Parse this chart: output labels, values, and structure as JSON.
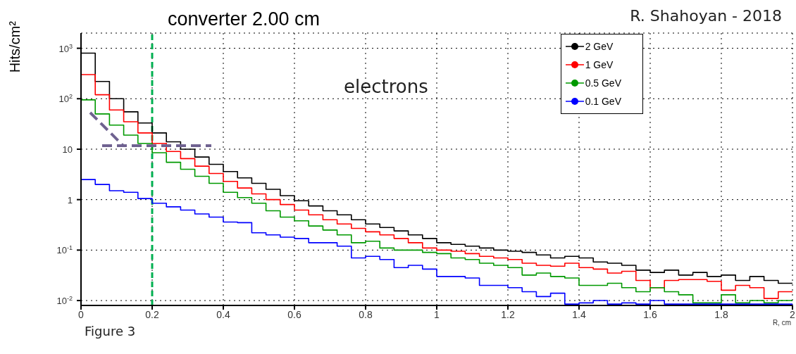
{
  "chart_data": {
    "type": "histogram",
    "title": "converter 2.00 cm",
    "xlabel": "R, cm",
    "ylabel": "Hits/cm²",
    "annotations": [
      "R. Shahoyan - 2018",
      "electrons",
      "Figure 3"
    ],
    "bins": [
      0,
      0.04,
      0.08,
      0.12,
      0.16,
      0.2,
      0.24,
      0.28,
      0.32,
      0.36,
      0.4,
      0.44,
      0.48,
      0.52,
      0.56,
      0.6,
      0.64,
      0.68,
      0.72,
      0.76,
      0.8,
      0.84,
      0.88,
      0.92,
      0.96,
      1.0,
      1.04,
      1.08,
      1.12,
      1.16,
      1.2,
      1.24,
      1.28,
      1.32,
      1.36,
      1.4,
      1.44,
      1.48,
      1.52,
      1.56,
      1.6,
      1.64,
      1.68,
      1.72,
      1.76,
      1.8,
      1.84,
      1.88,
      1.92,
      1.96,
      2.0
    ],
    "series": [
      {
        "name": "2 GeV",
        "color": "#000000",
        "values": [
          800,
          220,
          100,
          55,
          33,
          21,
          14,
          10,
          7,
          5,
          3.6,
          2.7,
          2.1,
          1.6,
          1.2,
          0.95,
          0.75,
          0.6,
          0.5,
          0.4,
          0.33,
          0.28,
          0.24,
          0.2,
          0.17,
          0.14,
          0.13,
          0.12,
          0.11,
          0.1,
          0.095,
          0.09,
          0.08,
          0.07,
          0.075,
          0.07,
          0.058,
          0.055,
          0.05,
          0.04,
          0.036,
          0.04,
          0.032,
          0.036,
          0.03,
          0.032,
          0.025,
          0.03,
          0.025,
          0.022
        ]
      },
      {
        "name": "1 GeV",
        "color": "#ff0000",
        "values": [
          300,
          120,
          60,
          35,
          21,
          13,
          9,
          6.5,
          4.6,
          3.3,
          2.3,
          1.7,
          1.3,
          1.0,
          0.8,
          0.62,
          0.5,
          0.4,
          0.33,
          0.27,
          0.23,
          0.2,
          0.17,
          0.14,
          0.11,
          0.1,
          0.095,
          0.085,
          0.075,
          0.07,
          0.065,
          0.055,
          0.05,
          0.048,
          0.055,
          0.045,
          0.042,
          0.035,
          0.038,
          0.025,
          0.018,
          0.025,
          0.026,
          0.026,
          0.024,
          0.016,
          0.02,
          0.018,
          0.011,
          0.015
        ]
      },
      {
        "name": "0.5 GeV",
        "color": "#009900",
        "values": [
          95,
          50,
          30,
          19,
          13,
          8.5,
          5.5,
          4,
          2.9,
          2.1,
          1.4,
          1.1,
          0.85,
          0.6,
          0.45,
          0.38,
          0.3,
          0.25,
          0.2,
          0.14,
          0.15,
          0.11,
          0.1,
          0.1,
          0.09,
          0.085,
          0.07,
          0.065,
          0.055,
          0.05,
          0.045,
          0.032,
          0.035,
          0.03,
          0.028,
          0.02,
          0.02,
          0.022,
          0.018,
          0.015,
          0.018,
          0.015,
          0.013,
          0.009,
          0.009,
          0.013,
          0.009,
          0.01,
          0.009,
          0.01
        ]
      },
      {
        "name": "0.1 GeV",
        "color": "#0000ff",
        "values": [
          2.5,
          2.0,
          1.5,
          1.4,
          1.05,
          0.85,
          0.72,
          0.62,
          0.52,
          0.45,
          0.36,
          0.35,
          0.22,
          0.2,
          0.18,
          0.17,
          0.14,
          0.14,
          0.12,
          0.07,
          0.075,
          0.065,
          0.045,
          0.05,
          0.042,
          0.03,
          0.03,
          0.028,
          0.02,
          0.02,
          0.018,
          0.015,
          0.012,
          0.014,
          0.0085,
          0.009,
          0.01,
          0.0085,
          0.009,
          0.0085,
          0.01,
          0.0085,
          0.0085,
          0.0085,
          0.0085,
          0.0085,
          0.0085,
          0.0085,
          0.0085,
          0.0085
        ]
      }
    ],
    "xlim": [
      0,
      2
    ],
    "xticks": [
      0,
      0.2,
      0.4,
      0.6,
      0.8,
      1,
      1.2,
      1.4,
      1.6,
      1.8,
      2
    ],
    "ylim": [
      0.008,
      2000
    ],
    "yticks": [
      {
        "value": 0.01,
        "label": "10$^{-2}$"
      },
      {
        "value": 0.1,
        "label": "10$^{-1}$"
      },
      1,
      10,
      {
        "value": 100,
        "label": "10$^{2}$"
      },
      {
        "value": 1000,
        "label": "10$^{3}$"
      }
    ],
    "log": "y",
    "grid": true,
    "legend": "top right",
    "ref_lines": [
      {
        "axis": "x",
        "value": 0.2,
        "color": "#00b050",
        "line_style": "dashed"
      }
    ]
  }
}
